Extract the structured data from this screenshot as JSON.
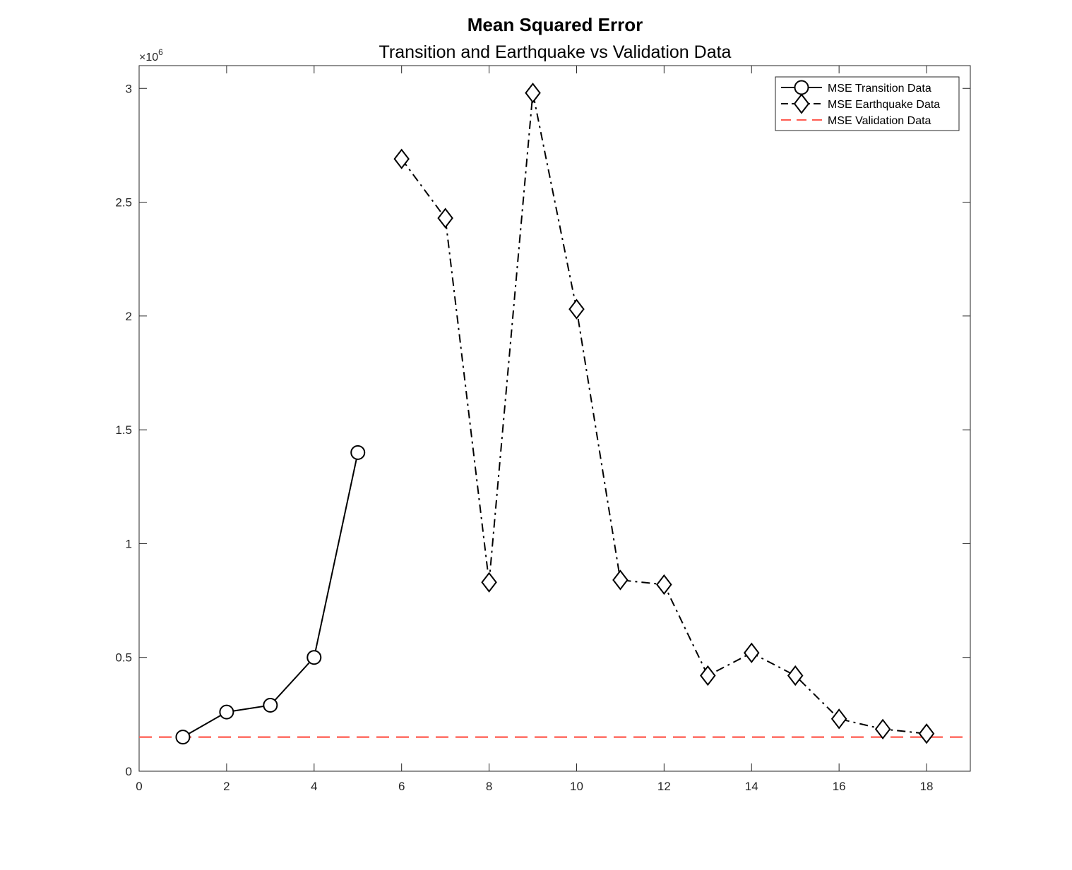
{
  "chart_data": {
    "type": "line",
    "title": "Mean Squared Error",
    "subtitle": "Transition and Earthquake vs Validation Data",
    "xlabel": "",
    "ylabel": "",
    "xlim": [
      0,
      19
    ],
    "ylim": [
      0,
      3.1
    ],
    "y_exponent_label": "×10",
    "y_exponent_power": "6",
    "x_ticks": [
      0,
      2,
      4,
      6,
      8,
      10,
      12,
      14,
      16,
      18
    ],
    "x_tick_labels": [
      "0",
      "2",
      "4",
      "6",
      "8",
      "10",
      "12",
      "14",
      "16",
      "18"
    ],
    "y_ticks": [
      0,
      0.5,
      1,
      1.5,
      2,
      2.5,
      3
    ],
    "y_tick_labels": [
      "0",
      "0.5",
      "1",
      "1.5",
      "2",
      "2.5",
      "3"
    ],
    "grid": false,
    "legend_position": "top-right",
    "series": [
      {
        "name": "MSE Transition Data",
        "x": [
          1,
          2,
          3,
          4,
          5
        ],
        "y": [
          0.15,
          0.26,
          0.29,
          0.5,
          1.4
        ],
        "marker": "circle",
        "line_style": "solid",
        "color": "#000000"
      },
      {
        "name": "MSE Earthquake Data",
        "x": [
          6,
          7,
          8,
          9,
          10,
          11,
          12,
          13,
          14,
          15,
          16,
          17,
          18
        ],
        "y": [
          2.69,
          2.43,
          0.83,
          2.98,
          2.03,
          0.84,
          0.82,
          0.42,
          0.52,
          0.42,
          0.23,
          0.185,
          0.165
        ],
        "marker": "diamond",
        "line_style": "dash-dot",
        "color": "#000000"
      },
      {
        "name": "MSE Validation Data",
        "x": [
          0,
          19
        ],
        "y": [
          0.15,
          0.15
        ],
        "marker": "none",
        "line_style": "dashed",
        "color": "#ff5a4f"
      }
    ]
  }
}
